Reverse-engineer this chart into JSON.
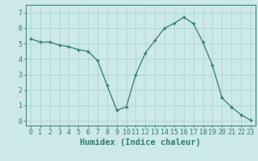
{
  "x": [
    0,
    1,
    2,
    3,
    4,
    5,
    6,
    7,
    8,
    9,
    10,
    11,
    12,
    13,
    14,
    15,
    16,
    17,
    18,
    19,
    20,
    21,
    22,
    23
  ],
  "y": [
    5.3,
    5.1,
    5.1,
    4.9,
    4.8,
    4.6,
    4.5,
    3.9,
    2.3,
    0.7,
    0.9,
    3.0,
    4.4,
    5.2,
    6.0,
    6.3,
    6.7,
    6.3,
    5.1,
    3.6,
    1.5,
    0.9,
    0.4,
    0.05
  ],
  "line_color": "#2e7d6e",
  "marker": "+",
  "bg_color": "#cce8e8",
  "grid_color": "#afd4d4",
  "xlabel": "Humidex (Indice chaleur)",
  "xlim": [
    -0.5,
    23.5
  ],
  "ylim": [
    -0.3,
    7.5
  ],
  "yticks": [
    0,
    1,
    2,
    3,
    4,
    5,
    6,
    7
  ],
  "xticks": [
    0,
    1,
    2,
    3,
    4,
    5,
    6,
    7,
    8,
    9,
    10,
    11,
    12,
    13,
    14,
    15,
    16,
    17,
    18,
    19,
    20,
    21,
    22,
    23
  ],
  "tick_color": "#2e7d6e",
  "label_color": "#2e7d6e",
  "xlabel_fontsize": 7.5,
  "tick_fontsize": 6.0
}
